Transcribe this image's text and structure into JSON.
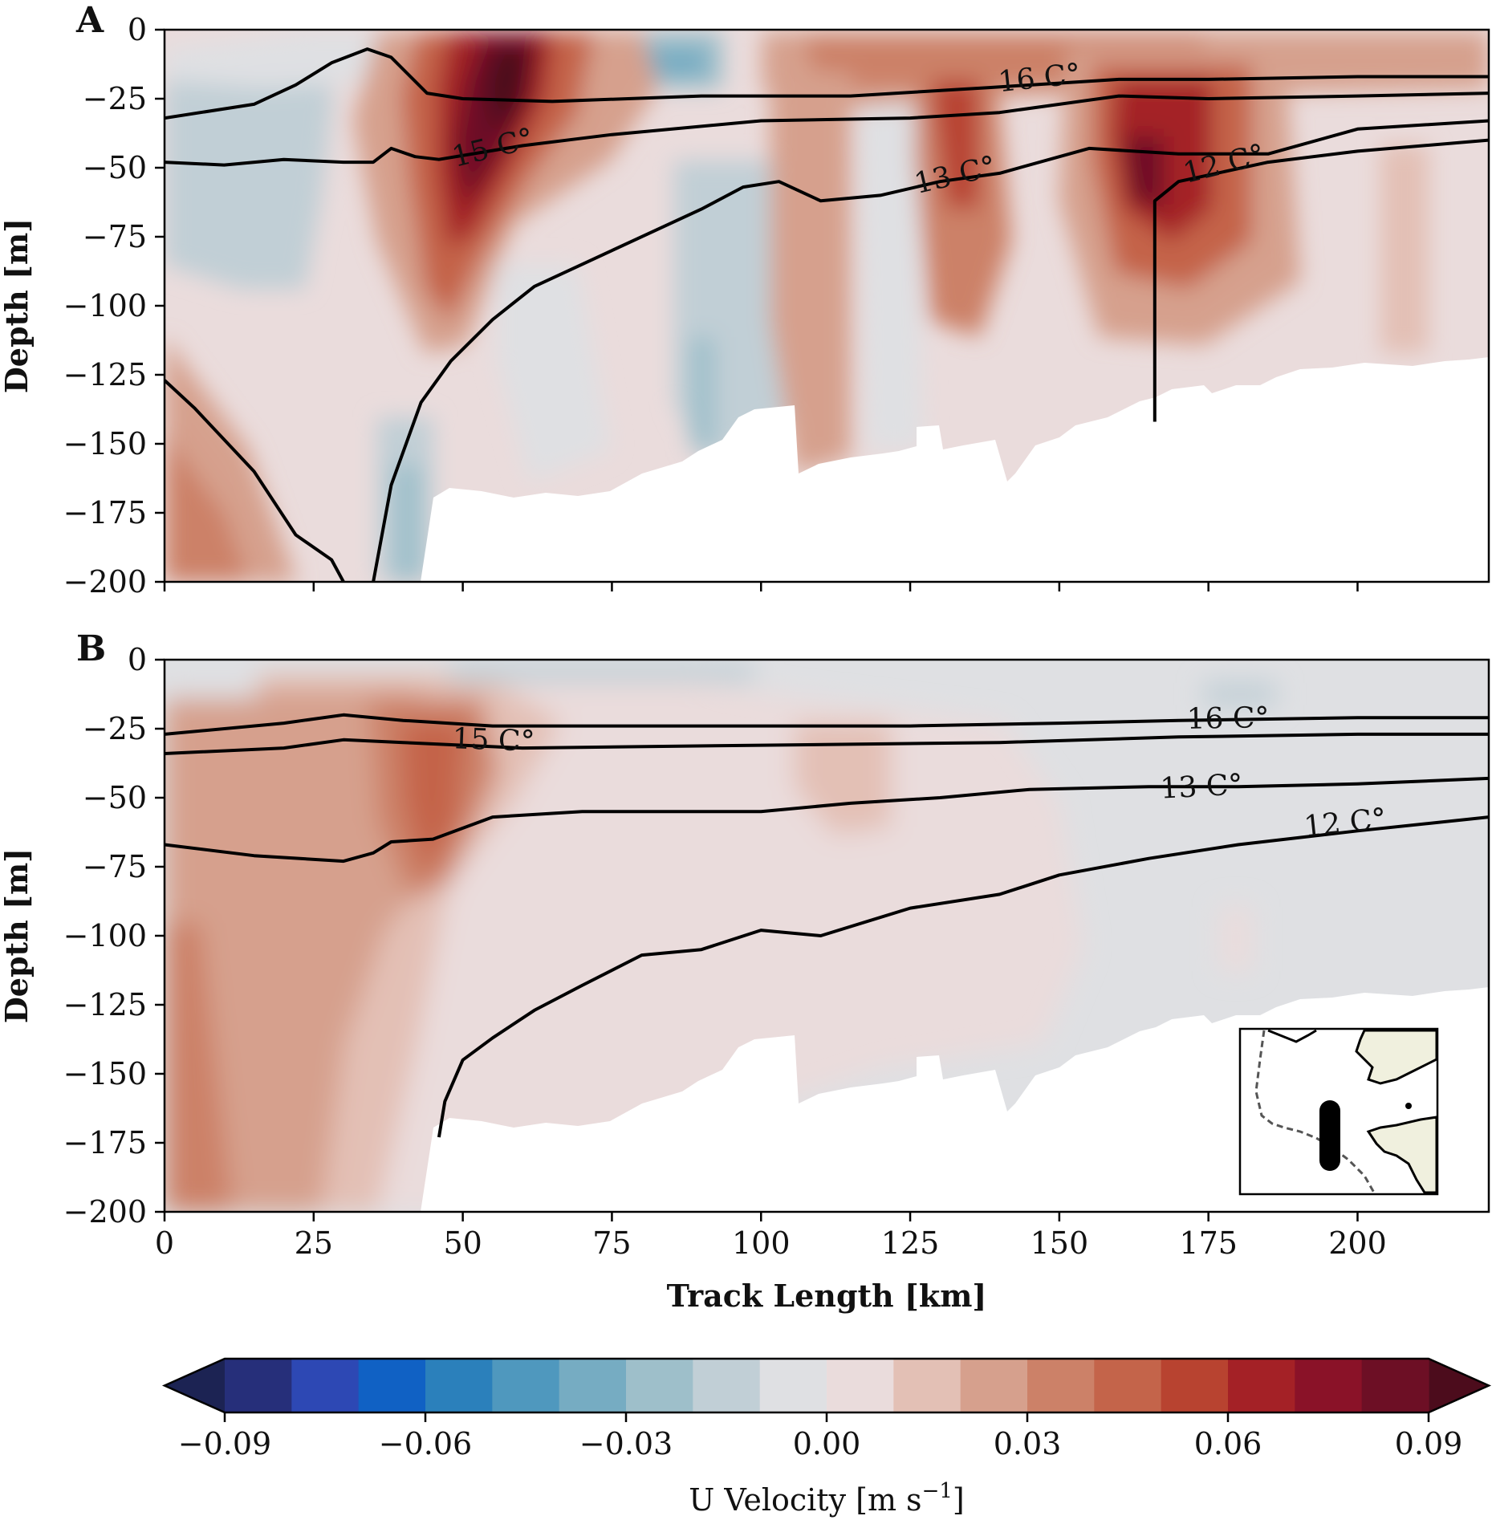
{
  "chart_data": [
    {
      "panel": "A",
      "type": "contourf",
      "xlabel": "",
      "ylabel": "Depth [m]",
      "xlim": [
        0,
        222
      ],
      "ylim": [
        -200,
        0
      ],
      "x_ticks": [
        0,
        25,
        50,
        75,
        100,
        125,
        150,
        175,
        200
      ],
      "y_ticks": [
        0,
        -25,
        -50,
        -75,
        -100,
        -125,
        -150,
        -175,
        -200
      ],
      "y_tick_labels": [
        "0",
        "−25",
        "−50",
        "−75",
        "−100",
        "−125",
        "−150",
        "−175",
        "−200"
      ],
      "isotherms": [
        {
          "label": "16 C°",
          "points": [
            [
              0,
              -32
            ],
            [
              15,
              -27
            ],
            [
              22,
              -20
            ],
            [
              28,
              -12
            ],
            [
              34,
              -7
            ],
            [
              38,
              -10
            ],
            [
              44,
              -23
            ],
            [
              50,
              -25
            ],
            [
              65,
              -26
            ],
            [
              90,
              -24
            ],
            [
              115,
              -24
            ],
            [
              138,
              -21
            ],
            [
              160,
              -18
            ],
            [
              175,
              -18
            ],
            [
              200,
              -17
            ],
            [
              222,
              -17
            ]
          ]
        },
        {
          "label": "15 C°",
          "points": [
            [
              0,
              -48
            ],
            [
              10,
              -49
            ],
            [
              20,
              -47
            ],
            [
              30,
              -48
            ],
            [
              35,
              -48
            ],
            [
              38,
              -43
            ],
            [
              42,
              -46
            ],
            [
              46,
              -47
            ],
            [
              60,
              -42
            ],
            [
              75,
              -38
            ],
            [
              100,
              -33
            ],
            [
              125,
              -32
            ],
            [
              140,
              -30
            ],
            [
              160,
              -24
            ],
            [
              175,
              -25
            ],
            [
              200,
              -24
            ],
            [
              222,
              -23
            ]
          ]
        },
        {
          "label": "13 C°",
          "points": [
            [
              35,
              -200
            ],
            [
              38,
              -165
            ],
            [
              43,
              -135
            ],
            [
              48,
              -120
            ],
            [
              55,
              -105
            ],
            [
              62,
              -93
            ],
            [
              75,
              -80
            ],
            [
              90,
              -65
            ],
            [
              97,
              -57
            ],
            [
              103,
              -55
            ],
            [
              110,
              -62
            ],
            [
              120,
              -60
            ],
            [
              130,
              -55
            ],
            [
              140,
              -52
            ],
            [
              155,
              -43
            ],
            [
              170,
              -45
            ],
            [
              185,
              -45
            ],
            [
              200,
              -36
            ],
            [
              222,
              -33
            ]
          ]
        },
        {
          "label": "12 C°",
          "points": [
            [
              0,
              -127
            ],
            [
              5,
              -137
            ],
            [
              15,
              -160
            ],
            [
              22,
              -183
            ],
            [
              28,
              -192
            ],
            [
              30,
              -200
            ]
          ]
        },
        {
          "label": "",
          "points": [
            [
              166,
              -142
            ],
            [
              166,
              -62
            ],
            [
              170,
              -55
            ],
            [
              185,
              -48
            ],
            [
              200,
              -44
            ],
            [
              222,
              -40
            ]
          ]
        }
      ],
      "velocity_cores": [
        {
          "x": 58,
          "depth": -35,
          "u": 0.095
        },
        {
          "x": 163,
          "depth": -55,
          "u": 0.085
        },
        {
          "x": 132,
          "depth": -35,
          "u": 0.06
        },
        {
          "x": 82,
          "depth": -8,
          "u": -0.03
        },
        {
          "x": 42,
          "depth": -175,
          "u": -0.035
        },
        {
          "x": 90,
          "depth": -140,
          "u": -0.03
        },
        {
          "x": 5,
          "depth": -190,
          "u": 0.045
        }
      ]
    },
    {
      "panel": "B",
      "type": "contourf",
      "xlabel": "Track Length [km]",
      "ylabel": "Depth [m]",
      "xlim": [
        0,
        222
      ],
      "ylim": [
        -200,
        0
      ],
      "x_ticks": [
        0,
        25,
        50,
        75,
        100,
        125,
        150,
        175,
        200
      ],
      "x_tick_labels": [
        "0",
        "25",
        "50",
        "75",
        "100",
        "125",
        "150",
        "175",
        "200"
      ],
      "y_ticks": [
        0,
        -25,
        -50,
        -75,
        -100,
        -125,
        -150,
        -175,
        -200
      ],
      "y_tick_labels": [
        "0",
        "−25",
        "−50",
        "−75",
        "−100",
        "−125",
        "−150",
        "−175",
        "−200"
      ],
      "isotherms": [
        {
          "label": "16 C°",
          "points": [
            [
              0,
              -27
            ],
            [
              20,
              -23
            ],
            [
              30,
              -20
            ],
            [
              40,
              -22
            ],
            [
              55,
              -24
            ],
            [
              75,
              -24
            ],
            [
              100,
              -24
            ],
            [
              125,
              -24
            ],
            [
              150,
              -23
            ],
            [
              170,
              -22
            ],
            [
              200,
              -21
            ],
            [
              222,
              -21
            ]
          ]
        },
        {
          "label": "15 C°",
          "points": [
            [
              0,
              -34
            ],
            [
              20,
              -32
            ],
            [
              30,
              -29
            ],
            [
              40,
              -30
            ],
            [
              60,
              -32
            ],
            [
              100,
              -31
            ],
            [
              140,
              -30
            ],
            [
              170,
              -28
            ],
            [
              200,
              -27
            ],
            [
              222,
              -27
            ]
          ]
        },
        {
          "label": "13 C°",
          "points": [
            [
              0,
              -67
            ],
            [
              15,
              -71
            ],
            [
              30,
              -73
            ],
            [
              35,
              -70
            ],
            [
              38,
              -66
            ],
            [
              45,
              -65
            ],
            [
              55,
              -57
            ],
            [
              70,
              -55
            ],
            [
              100,
              -55
            ],
            [
              115,
              -52
            ],
            [
              130,
              -50
            ],
            [
              145,
              -47
            ],
            [
              165,
              -46
            ],
            [
              180,
              -46
            ],
            [
              200,
              -45
            ],
            [
              222,
              -43
            ]
          ]
        },
        {
          "label": "12 C°",
          "points": [
            [
              46,
              -173
            ],
            [
              47,
              -160
            ],
            [
              50,
              -145
            ],
            [
              55,
              -137
            ],
            [
              62,
              -127
            ],
            [
              70,
              -118
            ],
            [
              80,
              -107
            ],
            [
              90,
              -105
            ],
            [
              100,
              -98
            ],
            [
              110,
              -100
            ],
            [
              125,
              -90
            ],
            [
              140,
              -85
            ],
            [
              150,
              -78
            ],
            [
              165,
              -72
            ],
            [
              180,
              -67
            ],
            [
              200,
              -62
            ],
            [
              222,
              -57
            ]
          ]
        }
      ],
      "velocity_cores": [
        {
          "x": 45,
          "depth": -50,
          "u": 0.045
        },
        {
          "x": 10,
          "depth": -150,
          "u": 0.03
        },
        {
          "x": 110,
          "depth": -45,
          "u": 0.02
        }
      ],
      "inset_map": "track location map"
    }
  ],
  "panel_labels": [
    "A",
    "B"
  ],
  "colorbar": {
    "label_main": "U Velocity [m s",
    "label_sup": "−1",
    "label_end": "]",
    "levels": [
      -0.1,
      -0.09,
      -0.08,
      -0.07,
      -0.06,
      -0.05,
      -0.04,
      -0.03,
      -0.02,
      -0.01,
      0.0,
      0.01,
      0.02,
      0.03,
      0.04,
      0.05,
      0.06,
      0.07,
      0.08,
      0.09,
      0.1
    ],
    "colors": [
      "#1c2353",
      "#262f7a",
      "#2d48b4",
      "#1061c4",
      "#2b80bb",
      "#4f98be",
      "#76acc2",
      "#9ebfca",
      "#c1cfd6",
      "#dfe0e3",
      "#eadcdc",
      "#e3c0b5",
      "#d6a08d",
      "#cc8168",
      "#c4644a",
      "#b84330",
      "#a42126",
      "#8a1228",
      "#6d0f25",
      "#4c0c1c"
    ],
    "tick_values": [
      -0.09,
      -0.06,
      -0.03,
      0.0,
      0.03,
      0.06,
      0.09
    ],
    "tick_labels": [
      "−0.09",
      "−0.06",
      "−0.03",
      "0.00",
      "0.03",
      "0.06",
      "0.09"
    ],
    "extend": "both"
  },
  "colors": {
    "isotherm": "#000000",
    "land": "#f0f0de",
    "bathymetry_mask": "#ffffff"
  }
}
